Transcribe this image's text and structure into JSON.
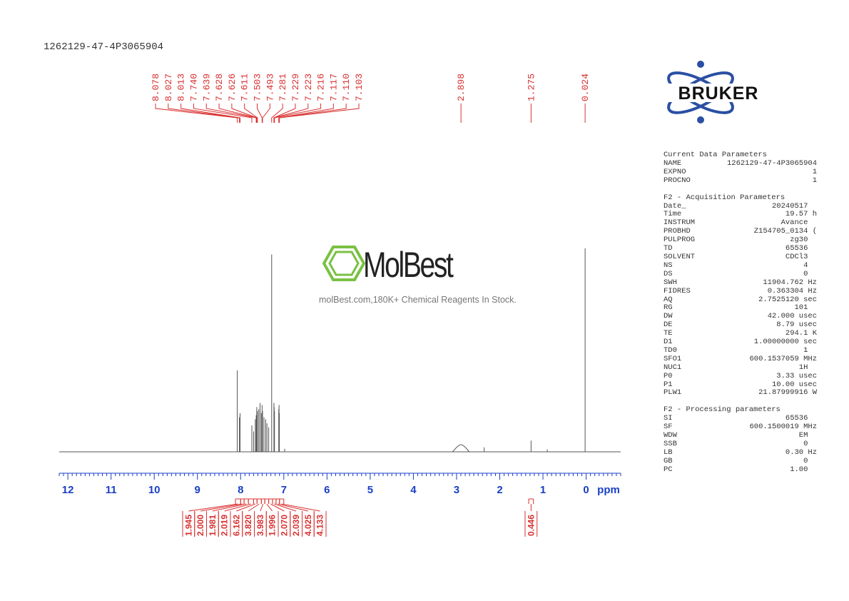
{
  "sample_name": "1262129-47-4P3065904",
  "brand": {
    "bruker": "BRUKER",
    "color": "#2a4fa3"
  },
  "watermark": {
    "name": "MolBest",
    "tagline": "molBest.com,180K+ Chemical Reagents In Stock.",
    "color": "#7ac143"
  },
  "colors": {
    "peak_labels": "#d93030",
    "axis": "#1a3fc4",
    "trace": "#555555"
  },
  "chart_data": {
    "type": "line",
    "title": "",
    "xlabel": "ppm",
    "ylabel": "",
    "xlim": [
      12.2,
      -0.8
    ],
    "x_ticks": [
      12,
      11,
      10,
      9,
      8,
      7,
      6,
      5,
      4,
      3,
      2,
      1,
      0
    ],
    "peak_labels": [
      "8.078",
      "8.027",
      "8.013",
      "7.740",
      "7.639",
      "7.628",
      "7.626",
      "7.611",
      "7.503",
      "7.493",
      "7.281",
      "7.229",
      "7.223",
      "7.216",
      "7.117",
      "7.110",
      "7.103",
      "2.898",
      "1.275",
      "0.024"
    ],
    "integrals": [
      {
        "value": "1.945",
        "from": 8.12,
        "to": 8.0
      },
      {
        "value": "2.000",
        "from": 8.0,
        "to": 7.92
      },
      {
        "value": "1.981",
        "from": 7.92,
        "to": 7.82
      },
      {
        "value": "2.019",
        "from": 7.82,
        "to": 7.7
      },
      {
        "value": "6.162",
        "from": 7.7,
        "to": 7.62
      },
      {
        "value": "3.820",
        "from": 7.62,
        "to": 7.52
      },
      {
        "value": "3.983",
        "from": 7.52,
        "to": 7.44
      },
      {
        "value": "1.996",
        "from": 7.44,
        "to": 7.35
      },
      {
        "value": "2.070",
        "from": 7.35,
        "to": 7.26
      },
      {
        "value": "2.039",
        "from": 7.26,
        "to": 7.18
      },
      {
        "value": "4.025",
        "from": 7.18,
        "to": 7.1
      },
      {
        "value": "4.133",
        "from": 7.1,
        "to": 7.0
      },
      {
        "value": "0.446",
        "from": 1.33,
        "to": 1.22
      }
    ],
    "peaks": [
      {
        "ppm": 8.078,
        "h": 0.4
      },
      {
        "ppm": 8.027,
        "h": 0.17
      },
      {
        "ppm": 8.013,
        "h": 0.19
      },
      {
        "ppm": 7.74,
        "h": 0.13
      },
      {
        "ppm": 7.7,
        "h": 0.1
      },
      {
        "ppm": 7.66,
        "h": 0.16
      },
      {
        "ppm": 7.639,
        "h": 0.18
      },
      {
        "ppm": 7.626,
        "h": 0.22
      },
      {
        "ppm": 7.611,
        "h": 0.2
      },
      {
        "ppm": 7.58,
        "h": 0.21
      },
      {
        "ppm": 7.55,
        "h": 0.24
      },
      {
        "ppm": 7.52,
        "h": 0.19
      },
      {
        "ppm": 7.503,
        "h": 0.23
      },
      {
        "ppm": 7.493,
        "h": 0.2
      },
      {
        "ppm": 7.46,
        "h": 0.17
      },
      {
        "ppm": 7.42,
        "h": 0.16
      },
      {
        "ppm": 7.39,
        "h": 0.14
      },
      {
        "ppm": 7.35,
        "h": 0.12
      },
      {
        "ppm": 7.281,
        "h": 0.97
      },
      {
        "ppm": 7.229,
        "h": 0.24
      },
      {
        "ppm": 7.223,
        "h": 0.22
      },
      {
        "ppm": 7.216,
        "h": 0.2
      },
      {
        "ppm": 7.117,
        "h": 0.21
      },
      {
        "ppm": 7.11,
        "h": 0.23
      },
      {
        "ppm": 7.103,
        "h": 0.19
      },
      {
        "ppm": 6.98,
        "h": 0.015
      },
      {
        "ppm": 2.898,
        "h": 0.035,
        "w": 0.12
      },
      {
        "ppm": 2.36,
        "h": 0.022
      },
      {
        "ppm": 1.275,
        "h": 0.055
      },
      {
        "ppm": 0.9,
        "h": 0.012
      },
      {
        "ppm": 0.024,
        "h": 1.0
      }
    ]
  },
  "params": {
    "current_title": "Current Data Parameters",
    "current": [
      [
        "NAME",
        "1262129-47-4P3065904"
      ],
      [
        "EXPNO",
        "1"
      ],
      [
        "PROCNO",
        "1"
      ]
    ],
    "acq_title": "F2 - Acquisition Parameters",
    "acq": [
      [
        "Date_",
        "20240517  "
      ],
      [
        "Time",
        "19.57 h"
      ],
      [
        "INSTRUM",
        "Avance  "
      ],
      [
        "PROBHD",
        "Z154705_0134 ("
      ],
      [
        "PULPROG",
        "zg30  "
      ],
      [
        "TD",
        "65536  "
      ],
      [
        "SOLVENT",
        "CDCl3  "
      ],
      [
        "NS",
        "4  "
      ],
      [
        "DS",
        "0  "
      ],
      [
        "SWH",
        "11904.762 Hz"
      ],
      [
        "FIDRES",
        "0.363304 Hz"
      ],
      [
        "AQ",
        "2.7525120 sec"
      ],
      [
        "RG",
        "101  "
      ],
      [
        "DW",
        "42.000 usec"
      ],
      [
        "DE",
        "8.79 usec"
      ],
      [
        "TE",
        "294.1 K"
      ],
      [
        "D1",
        "1.00000000 sec"
      ],
      [
        "TD0",
        "1  "
      ],
      [
        "SFO1",
        "600.1537059 MHz"
      ],
      [
        "NUC1",
        "1H  "
      ],
      [
        "P0",
        "3.33 usec"
      ],
      [
        "P1",
        "10.00 usec"
      ],
      [
        "PLW1",
        "21.87999916 W"
      ]
    ],
    "proc_title": "F2 - Processing parameters",
    "proc": [
      [
        "SI",
        "65536  "
      ],
      [
        "SF",
        "600.1500019 MHz"
      ],
      [
        "WDW",
        "EM  "
      ],
      [
        "SSB",
        "0  "
      ],
      [
        "LB",
        "0.30 Hz"
      ],
      [
        "GB",
        "0  "
      ],
      [
        "PC",
        "1.00  "
      ]
    ]
  }
}
